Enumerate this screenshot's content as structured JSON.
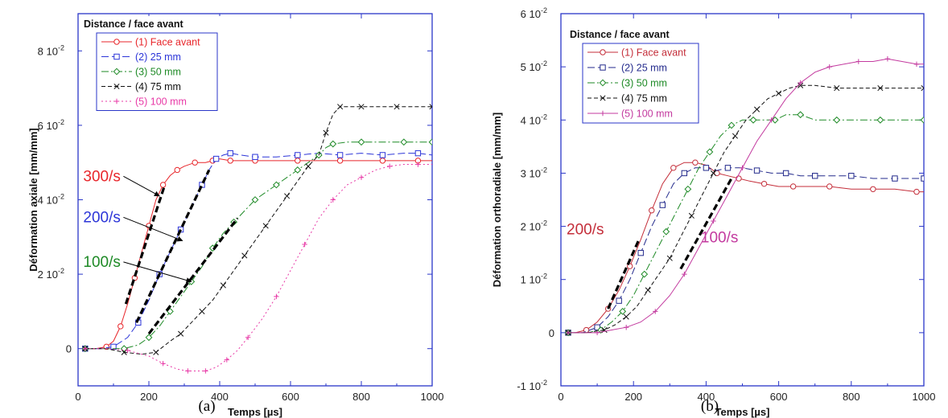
{
  "chart_data": [
    {
      "type": "line",
      "caption": "(a)",
      "xlabel": "Temps [µs]",
      "ylabel": "Déformation axiale [mm/mm]",
      "xlim": [
        0,
        1000
      ],
      "ylim": [
        -0.01,
        0.09
      ],
      "x_ticks": [
        0,
        200,
        400,
        600,
        800,
        1000
      ],
      "y_ticks": [
        {
          "value": 0,
          "label": "0"
        },
        {
          "value": 0.02,
          "label": "2 10",
          "exp": "-2"
        },
        {
          "value": 0.04,
          "label": "4 10",
          "exp": "-2"
        },
        {
          "value": 0.06,
          "label": "6 10",
          "exp": "-2"
        },
        {
          "value": 0.08,
          "label": "8 10",
          "exp": "-2"
        }
      ],
      "legend_title": "Distance / face avant",
      "legend_position": "top-left",
      "series": [
        {
          "name": "(1) Face avant",
          "color": "#e8262b",
          "dash": "",
          "marker": "circle",
          "x": [
            20,
            50,
            80,
            100,
            120,
            140,
            160,
            180,
            200,
            220,
            240,
            260,
            280,
            300,
            330,
            360,
            380,
            400,
            430,
            460,
            500,
            560,
            620,
            680,
            740,
            800,
            860,
            920,
            960,
            1000
          ],
          "y": [
            0,
            0,
            0.0005,
            0.002,
            0.006,
            0.012,
            0.019,
            0.026,
            0.033,
            0.04,
            0.044,
            0.0465,
            0.048,
            0.049,
            0.05,
            0.05,
            0.0505,
            0.051,
            0.0505,
            0.0505,
            0.0505,
            0.0505,
            0.0505,
            0.0505,
            0.0505,
            0.0505,
            0.0505,
            0.0505,
            0.0505,
            0.0505
          ]
        },
        {
          "name": "(2) 25 mm",
          "color": "#2c35d8",
          "dash": "9,4",
          "marker": "square",
          "x": [
            20,
            60,
            100,
            140,
            170,
            200,
            230,
            260,
            290,
            320,
            350,
            370,
            390,
            410,
            430,
            460,
            500,
            560,
            620,
            680,
            740,
            800,
            860,
            920,
            960,
            1000
          ],
          "y": [
            0,
            0,
            0.0005,
            0.003,
            0.007,
            0.013,
            0.02,
            0.026,
            0.032,
            0.038,
            0.044,
            0.048,
            0.051,
            0.052,
            0.0525,
            0.052,
            0.0515,
            0.0515,
            0.052,
            0.0525,
            0.052,
            0.0525,
            0.052,
            0.0525,
            0.0525,
            0.052
          ]
        },
        {
          "name": "(3) 50 mm",
          "color": "#1e8a26",
          "dash": "9,3,2,3",
          "marker": "diamond",
          "x": [
            20,
            80,
            130,
            170,
            200,
            230,
            260,
            290,
            320,
            350,
            380,
            410,
            440,
            470,
            500,
            530,
            560,
            590,
            620,
            650,
            680,
            700,
            720,
            760,
            800,
            860,
            920,
            980,
            1000
          ],
          "y": [
            0,
            0,
            0,
            0.001,
            0.003,
            0.006,
            0.01,
            0.014,
            0.018,
            0.022,
            0.027,
            0.031,
            0.034,
            0.037,
            0.04,
            0.042,
            0.044,
            0.046,
            0.048,
            0.05,
            0.052,
            0.054,
            0.055,
            0.0555,
            0.0555,
            0.0555,
            0.0555,
            0.0555,
            0.0555
          ]
        },
        {
          "name": "(4) 75 mm",
          "color": "#111111",
          "dash": "5,3",
          "marker": "x",
          "x": [
            20,
            80,
            130,
            180,
            220,
            260,
            290,
            320,
            350,
            380,
            410,
            440,
            470,
            500,
            530,
            560,
            590,
            620,
            650,
            680,
            700,
            720,
            740,
            760,
            800,
            850,
            900,
            950,
            1000
          ],
          "y": [
            0,
            0,
            -0.001,
            -0.0015,
            -0.001,
            0.002,
            0.004,
            0.007,
            0.01,
            0.013,
            0.017,
            0.021,
            0.025,
            0.029,
            0.033,
            0.037,
            0.041,
            0.045,
            0.049,
            0.052,
            0.058,
            0.063,
            0.065,
            0.065,
            0.065,
            0.065,
            0.065,
            0.065,
            0.065
          ]
        },
        {
          "name": "(5) 100 mm",
          "color": "#e83aa7",
          "dash": "2,3",
          "marker": "plus",
          "x": [
            20,
            80,
            140,
            200,
            240,
            280,
            310,
            330,
            360,
            390,
            420,
            450,
            480,
            520,
            560,
            600,
            640,
            680,
            720,
            760,
            800,
            840,
            880,
            920,
            960,
            1000
          ],
          "y": [
            0,
            0,
            -0.0005,
            -0.002,
            -0.004,
            -0.0055,
            -0.006,
            -0.006,
            -0.006,
            -0.005,
            -0.003,
            -0.0005,
            0.003,
            0.008,
            0.014,
            0.021,
            0.028,
            0.035,
            0.04,
            0.044,
            0.046,
            0.048,
            0.049,
            0.0495,
            0.0495,
            0.0495
          ]
        }
      ],
      "fit_segments": [
        {
          "x": [
            135,
            245
          ],
          "y": [
            0.012,
            0.044
          ]
        },
        {
          "x": [
            165,
            370
          ],
          "y": [
            0.007,
            0.048
          ]
        },
        {
          "x": [
            200,
            450
          ],
          "y": [
            0.004,
            0.035
          ]
        }
      ],
      "annotations": [
        {
          "text": "300/s",
          "color": "#e8262b",
          "x": 60,
          "y": 0.045,
          "arrow_to": [
            230,
            0.041
          ]
        },
        {
          "text": "200/s",
          "color": "#2c35d8",
          "x": 60,
          "y": 0.034,
          "arrow_to": [
            295,
            0.029
          ]
        },
        {
          "text": "100/s",
          "color": "#1e8a26",
          "x": 60,
          "y": 0.022,
          "arrow_to": [
            320,
            0.018
          ]
        }
      ]
    },
    {
      "type": "line",
      "caption": "(b)",
      "xlabel": "Temps [µs]",
      "ylabel": "Déformation orthoradiale [mm/mm]",
      "xlim": [
        0,
        1000
      ],
      "ylim": [
        -0.01,
        0.06
      ],
      "x_ticks": [
        0,
        200,
        400,
        600,
        800,
        1000
      ],
      "y_ticks": [
        {
          "value": -0.01,
          "label": "-1 10",
          "exp": "-2"
        },
        {
          "value": 0,
          "label": "0"
        },
        {
          "value": 0.01,
          "label": "1 10",
          "exp": "-2"
        },
        {
          "value": 0.02,
          "label": "2 10",
          "exp": "-2"
        },
        {
          "value": 0.03,
          "label": "3 10",
          "exp": "-2"
        },
        {
          "value": 0.04,
          "label": "4 10",
          "exp": "-2"
        },
        {
          "value": 0.05,
          "label": "5 10",
          "exp": "-2"
        },
        {
          "value": 0.06,
          "label": "6 10",
          "exp": "-2"
        }
      ],
      "legend_title": "Distance / face avant",
      "legend_position": "top-left",
      "series": [
        {
          "name": "(1) Face avant",
          "color": "#c42e3a",
          "dash": "",
          "marker": "circle",
          "x": [
            20,
            40,
            70,
            100,
            130,
            160,
            190,
            220,
            250,
            280,
            310,
            340,
            370,
            400,
            430,
            460,
            490,
            520,
            560,
            600,
            640,
            680,
            740,
            800,
            860,
            920,
            980,
            1000
          ],
          "y": [
            0,
            0,
            0.0005,
            0.002,
            0.0045,
            0.008,
            0.0125,
            0.0175,
            0.023,
            0.028,
            0.031,
            0.032,
            0.032,
            0.0315,
            0.03,
            0.0295,
            0.029,
            0.0285,
            0.028,
            0.0275,
            0.0275,
            0.0275,
            0.0275,
            0.027,
            0.027,
            0.027,
            0.0265,
            0.0265
          ]
        },
        {
          "name": "(2) 25 mm",
          "color": "#232a8c",
          "dash": "9,4",
          "marker": "square",
          "x": [
            20,
            60,
            100,
            130,
            160,
            190,
            220,
            250,
            280,
            310,
            340,
            370,
            400,
            430,
            460,
            500,
            540,
            580,
            620,
            660,
            700,
            740,
            800,
            860,
            920,
            980,
            1000
          ],
          "y": [
            0,
            0,
            0.001,
            0.003,
            0.006,
            0.01,
            0.015,
            0.02,
            0.024,
            0.028,
            0.03,
            0.031,
            0.031,
            0.0305,
            0.031,
            0.031,
            0.0305,
            0.03,
            0.03,
            0.0295,
            0.0295,
            0.0295,
            0.0295,
            0.029,
            0.029,
            0.029,
            0.029
          ]
        },
        {
          "name": "(3) 50 mm",
          "color": "#1e8a26",
          "dash": "9,3,2,3",
          "marker": "diamond",
          "x": [
            20,
            70,
            110,
            140,
            170,
            200,
            230,
            260,
            290,
            320,
            350,
            380,
            410,
            440,
            470,
            500,
            530,
            560,
            590,
            620,
            660,
            700,
            760,
            820,
            880,
            940,
            1000
          ],
          "y": [
            0,
            0,
            0.0005,
            0.002,
            0.004,
            0.007,
            0.011,
            0.015,
            0.019,
            0.023,
            0.027,
            0.031,
            0.034,
            0.037,
            0.039,
            0.04,
            0.04,
            0.04,
            0.04,
            0.041,
            0.041,
            0.04,
            0.04,
            0.04,
            0.04,
            0.04,
            0.04
          ]
        },
        {
          "name": "(4) 75 mm",
          "color": "#111111",
          "dash": "5,3",
          "marker": "x",
          "x": [
            20,
            70,
            120,
            150,
            180,
            210,
            240,
            270,
            300,
            330,
            360,
            390,
            420,
            450,
            480,
            510,
            540,
            570,
            600,
            630,
            660,
            700,
            760,
            820,
            880,
            940,
            1000
          ],
          "y": [
            0,
            0,
            0.0005,
            0.0015,
            0.003,
            0.005,
            0.008,
            0.011,
            0.014,
            0.018,
            0.022,
            0.026,
            0.03,
            0.034,
            0.037,
            0.04,
            0.042,
            0.044,
            0.045,
            0.046,
            0.0465,
            0.0465,
            0.046,
            0.046,
            0.046,
            0.046,
            0.046
          ]
        },
        {
          "name": "(5) 100 mm",
          "color": "#c33a9f",
          "dash": "",
          "marker": "plus",
          "x": [
            20,
            60,
            100,
            140,
            180,
            220,
            260,
            300,
            340,
            380,
            420,
            460,
            500,
            540,
            580,
            620,
            660,
            700,
            740,
            780,
            820,
            860,
            900,
            940,
            980,
            1000
          ],
          "y": [
            0,
            0,
            0,
            0.0005,
            0.001,
            0.002,
            0.004,
            0.007,
            0.011,
            0.016,
            0.021,
            0.026,
            0.031,
            0.036,
            0.04,
            0.044,
            0.047,
            0.049,
            0.05,
            0.0505,
            0.051,
            0.051,
            0.0515,
            0.051,
            0.0505,
            0.0505
          ]
        }
      ],
      "fit_segments": [
        {
          "x": [
            130,
            215
          ],
          "y": [
            0.0045,
            0.0175
          ]
        },
        {
          "x": [
            330,
            470
          ],
          "y": [
            0.012,
            0.029
          ]
        }
      ],
      "annotations": [
        {
          "text": "200/s",
          "color": "#c42e3a",
          "x": 60,
          "y": 0.0185
        },
        {
          "text": "100/s",
          "color": "#c33a9f",
          "x": 430,
          "y": 0.017
        }
      ]
    }
  ]
}
